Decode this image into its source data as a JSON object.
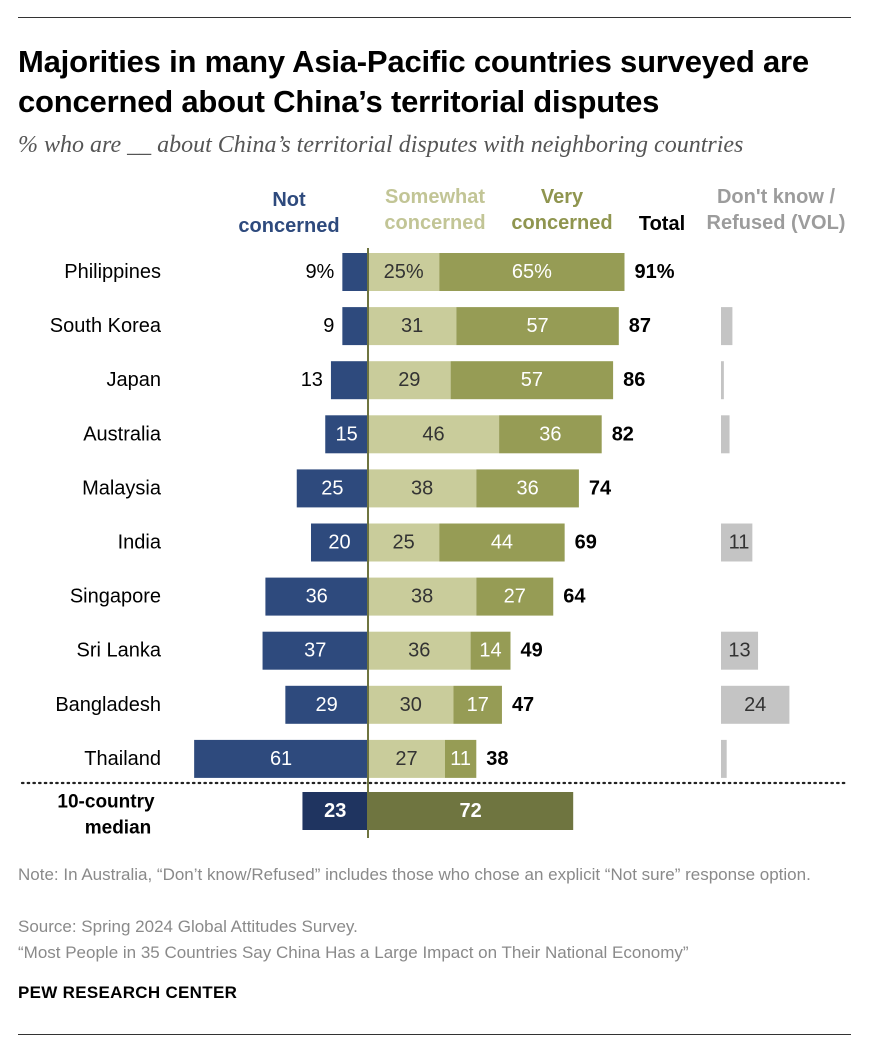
{
  "title": "Majorities in many Asia-Pacific countries surveyed are concerned about China’s territorial disputes",
  "subtitle": "% who are __ about China’s territorial disputes with neighboring countries",
  "headers": {
    "not_concerned": "Not concerned",
    "somewhat": "Somewhat concerned",
    "very": "Very concerned",
    "total": "Total",
    "dk": "Don't know / Refused (VOL)"
  },
  "notes": {
    "note": "Note: In Australia, “Don’t know/Refused” includes those who chose an explicit “Not sure” response option.",
    "source": "Source: Spring 2024 Global Attitudes Survey.",
    "report": "“Most People in 35 Countries Say China Has a Large Impact on Their National Economy”"
  },
  "brand": "PEW RESEARCH CENTER",
  "colors": {
    "not_concerned": "#2e4a7d",
    "somewhat": "#c9cc9b",
    "very": "#969c55",
    "median_not": "#1f3460",
    "median_concerned": "#6f7540",
    "dk": "#c4c4c4",
    "axis": "#6f7540"
  },
  "chart_data": {
    "type": "bar",
    "orientation": "horizontal diverging stacked",
    "categories": [
      "Philippines",
      "South Korea",
      "Japan",
      "Australia",
      "Malaysia",
      "India",
      "Singapore",
      "Sri Lanka",
      "Bangladesh",
      "Thailand"
    ],
    "series": [
      {
        "name": "Not concerned",
        "values": [
          9,
          9,
          13,
          15,
          25,
          20,
          36,
          37,
          29,
          61
        ]
      },
      {
        "name": "Somewhat concerned",
        "values": [
          25,
          31,
          29,
          46,
          38,
          25,
          38,
          36,
          30,
          27
        ]
      },
      {
        "name": "Very concerned",
        "values": [
          65,
          57,
          57,
          36,
          36,
          44,
          27,
          14,
          17,
          11
        ]
      },
      {
        "name": "Total",
        "values": [
          91,
          87,
          86,
          82,
          74,
          69,
          64,
          49,
          47,
          38
        ]
      },
      {
        "name": "Don't know / Refused (VOL)",
        "values": [
          null,
          4,
          1,
          3,
          null,
          11,
          null,
          13,
          24,
          2
        ]
      }
    ],
    "value_labels": {
      "not": [
        "9%",
        "9",
        "13",
        "15",
        "25",
        "20",
        "36",
        "37",
        "29",
        "61"
      ],
      "somewhat": [
        "25%",
        "31",
        "29",
        "46",
        "38",
        "25",
        "38",
        "36",
        "30",
        "27"
      ],
      "very": [
        "65%",
        "57",
        "57",
        "36",
        "36",
        "44",
        "27",
        "14",
        "17",
        "11"
      ],
      "total": [
        "91%",
        "87",
        "86",
        "82",
        "74",
        "69",
        "64",
        "49",
        "47",
        "38"
      ],
      "dk": [
        "",
        "",
        "",
        "",
        "",
        "11",
        "",
        "13",
        "24",
        ""
      ]
    },
    "median": {
      "label": "10-country median",
      "not_concerned": 23,
      "concerned": 72,
      "not_label": "23",
      "concerned_label": "72"
    }
  }
}
